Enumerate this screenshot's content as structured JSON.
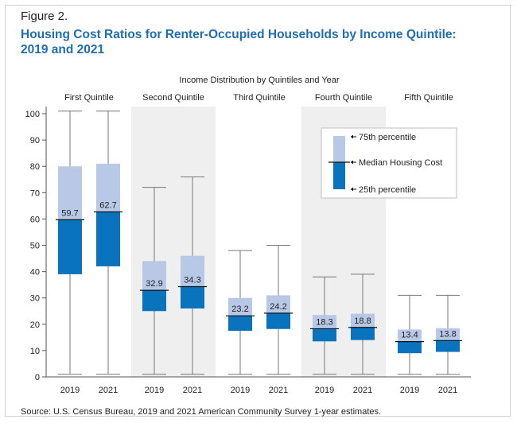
{
  "figure_label": "Figure 2.",
  "title_line1": "Housing Cost Ratios for Renter-Occupied Households by Income Quintile:",
  "title_line2": "2019 and 2021",
  "source": "Source: U.S. Census Bureau, 2019 and 2021 American Community Survey 1-year estimates.",
  "colors": {
    "upper": "#b8c9e8",
    "lower": "#0a73bd",
    "whisker": "#777777",
    "title": "#1f6db3",
    "panel": "#efefef"
  },
  "chart_data": {
    "type": "box",
    "title": "Income Distribution by Quintiles and Year",
    "ylim": [
      0,
      100
    ],
    "yticks": [
      0,
      10,
      20,
      30,
      40,
      50,
      60,
      70,
      80,
      90,
      100
    ],
    "grid": false,
    "legend_placement": "top-right",
    "legend": {
      "p75": "75th percentile",
      "median": "Median Housing Cost",
      "p25": "25th percentile"
    },
    "groups": [
      {
        "name": "First Quintile",
        "boxes": [
          {
            "year": "2019",
            "min": 1,
            "p25": 39,
            "median": 59.7,
            "median_label": "59.7",
            "p75": 80,
            "max": 101
          },
          {
            "year": "2021",
            "min": 1,
            "p25": 42,
            "median": 62.7,
            "median_label": "62.7",
            "p75": 81,
            "max": 101
          }
        ]
      },
      {
        "name": "Second Quintile",
        "boxes": [
          {
            "year": "2019",
            "min": 1,
            "p25": 25,
            "median": 32.9,
            "median_label": "32.9",
            "p75": 44,
            "max": 72
          },
          {
            "year": "2021",
            "min": 1,
            "p25": 26,
            "median": 34.3,
            "median_label": "34.3",
            "p75": 46,
            "max": 76
          }
        ]
      },
      {
        "name": "Third Quintile",
        "boxes": [
          {
            "year": "2019",
            "min": 1,
            "p25": 17.5,
            "median": 23.2,
            "median_label": "23.2",
            "p75": 30,
            "max": 48
          },
          {
            "year": "2021",
            "min": 1,
            "p25": 18.2,
            "median": 24.2,
            "median_label": "24.2",
            "p75": 31,
            "max": 50
          }
        ]
      },
      {
        "name": "Fourth Quintile",
        "boxes": [
          {
            "year": "2019",
            "min": 1,
            "p25": 13.5,
            "median": 18.3,
            "median_label": "18.3",
            "p75": 23.5,
            "max": 38
          },
          {
            "year": "2021",
            "min": 1,
            "p25": 14,
            "median": 18.8,
            "median_label": "18.8",
            "p75": 24,
            "max": 39
          }
        ]
      },
      {
        "name": "Fifth Quintile",
        "boxes": [
          {
            "year": "2019",
            "min": 1,
            "p25": 9,
            "median": 13.4,
            "median_label": "13.4",
            "p75": 18,
            "max": 31
          },
          {
            "year": "2021",
            "min": 1,
            "p25": 9.5,
            "median": 13.8,
            "median_label": "13.8",
            "p75": 18.5,
            "max": 31
          }
        ]
      }
    ]
  }
}
